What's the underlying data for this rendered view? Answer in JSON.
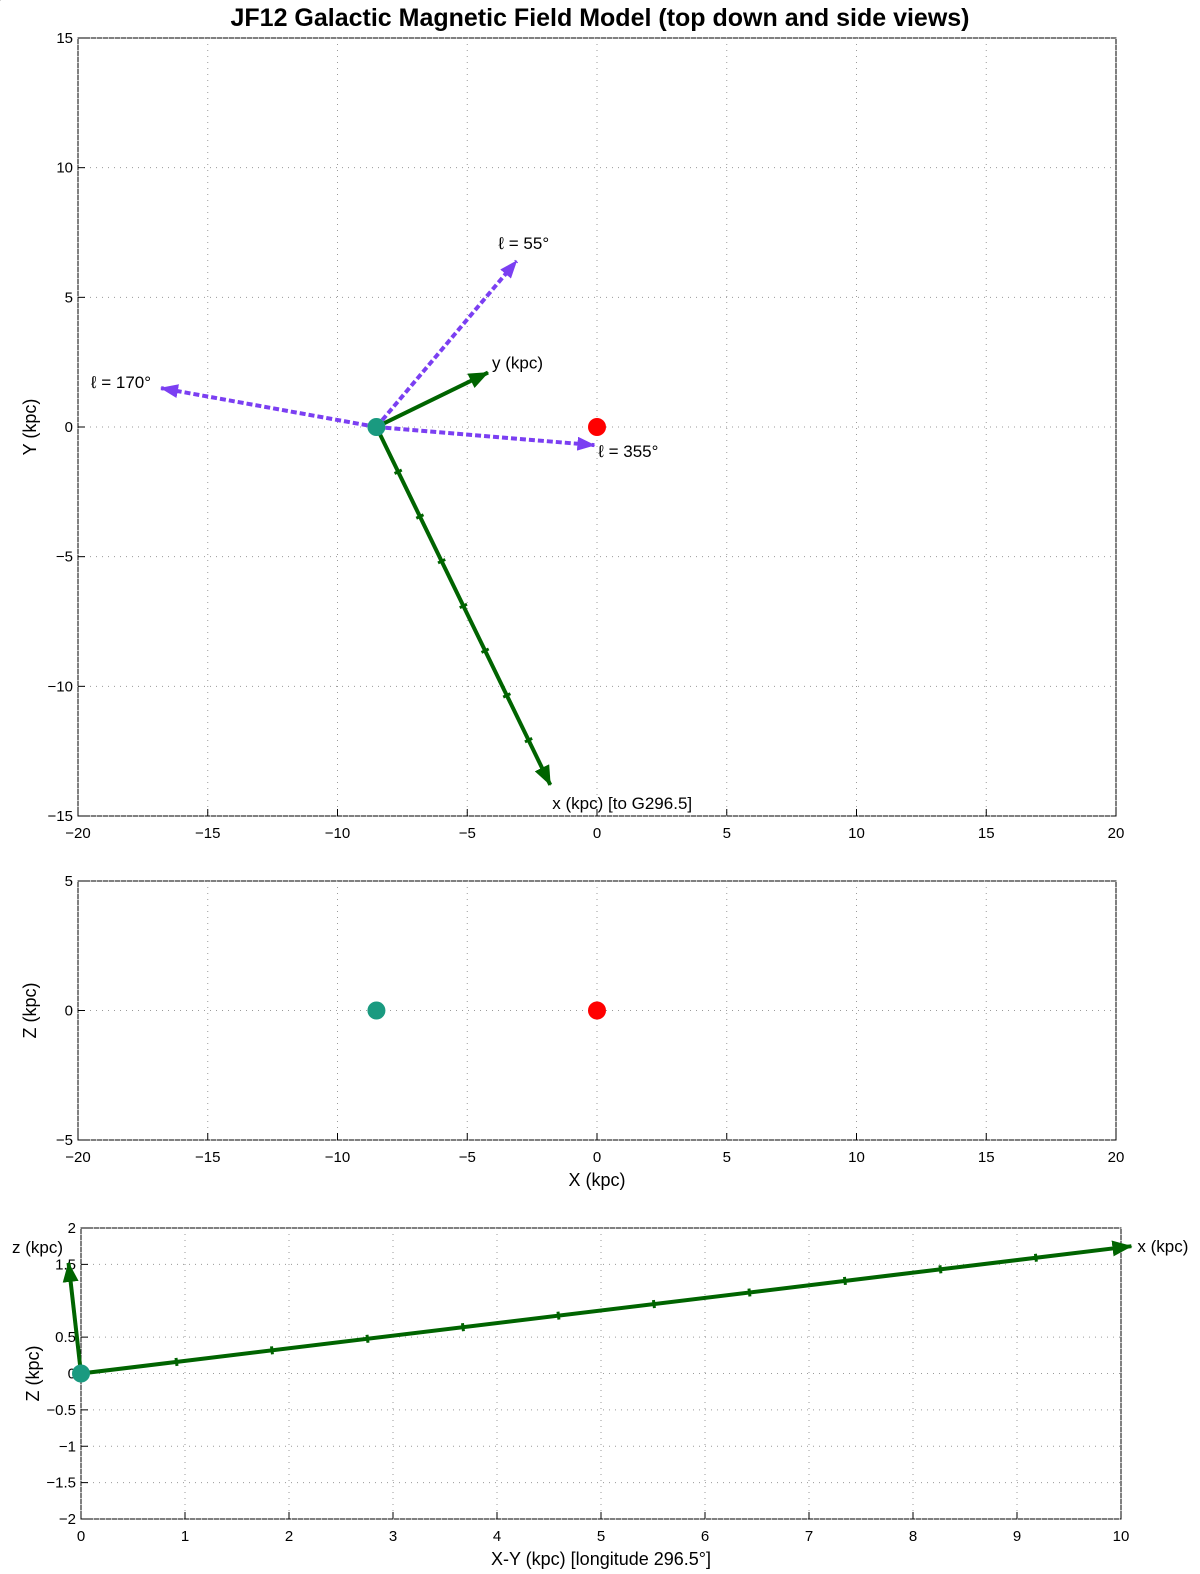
{
  "figure": {
    "title": "JF12 Galactic Magnetic Field Model (top down and side views)"
  },
  "colors": {
    "field_arrow": "#808080",
    "axis_arrow": "#006400",
    "longitude_arrow": "#7b3ff2",
    "sun": "#1a9a80",
    "galactic_center": "#ff0000",
    "grid": "#9a9a9a"
  },
  "chart_data": [
    {
      "type": "vector-field",
      "view": "top down",
      "xlabel": "",
      "ylabel": "Y (kpc)",
      "xlim": [
        -20,
        20
      ],
      "ylim": [
        -15,
        15
      ],
      "xticks": [
        -20,
        -15,
        -10,
        -5,
        0,
        5,
        10,
        15,
        20
      ],
      "yticks": [
        15,
        10,
        5,
        0,
        -5,
        -10,
        -15
      ],
      "xtick_labels": [
        "−20",
        "−15",
        "−10",
        "−5",
        "0",
        "5",
        "10",
        "15",
        "20"
      ],
      "ytick_labels": [
        "15",
        "10",
        "5",
        "0",
        "−5",
        "−10",
        "−15"
      ],
      "grid": "dotted",
      "points": [
        {
          "name": "sun",
          "x": -8.5,
          "y": 0
        },
        {
          "name": "galactic-center",
          "x": 0,
          "y": 0
        }
      ],
      "axis_arrows": [
        {
          "label": "y (kpc)",
          "from": [
            -8.5,
            0
          ],
          "to": [
            -4.2,
            2.1
          ]
        },
        {
          "label": "x (kpc) [to G296.5]",
          "from": [
            -8.5,
            0
          ],
          "to": [
            -1.8,
            -13.8
          ],
          "tick_count": 7
        }
      ],
      "longitude_arrows": [
        {
          "label": "ℓ = 55°",
          "from": [
            -8.5,
            0
          ],
          "to": [
            -3.1,
            6.4
          ]
        },
        {
          "label": "ℓ = 170°",
          "from": [
            -8.5,
            0
          ],
          "to": [
            -16.8,
            1.5
          ]
        },
        {
          "label": "ℓ = 355°",
          "from": [
            -8.5,
            0
          ],
          "to": [
            -0.1,
            -0.7
          ]
        }
      ]
    },
    {
      "type": "vector-field",
      "view": "side",
      "xlabel": "X (kpc)",
      "ylabel": "Z (kpc)",
      "xlim": [
        -20,
        20
      ],
      "ylim": [
        -5,
        5
      ],
      "xticks": [
        -20,
        -15,
        -10,
        -5,
        0,
        5,
        10,
        15,
        20
      ],
      "yticks": [
        5,
        0,
        -5
      ],
      "xtick_labels": [
        "−20",
        "−15",
        "−10",
        "−5",
        "0",
        "5",
        "10",
        "15",
        "20"
      ],
      "ytick_labels": [
        "5",
        "0",
        "−5"
      ],
      "grid": "dotted",
      "points": [
        {
          "name": "sun",
          "x": -8.5,
          "y": 0
        },
        {
          "name": "galactic-center",
          "x": 0,
          "y": 0
        }
      ]
    },
    {
      "type": "vector-field",
      "view": "line-of-sight cut",
      "xlabel": "X-Y (kpc) [longitude 296.5°]",
      "ylabel": "Z (kpc)",
      "xlim": [
        0,
        10
      ],
      "ylim": [
        -2,
        2
      ],
      "xticks": [
        0,
        1,
        2,
        3,
        4,
        5,
        6,
        7,
        8,
        9,
        10
      ],
      "yticks": [
        2,
        1.5,
        0.5,
        0,
        -0.5,
        -1,
        -1.5,
        -2
      ],
      "xtick_labels": [
        "0",
        "1",
        "2",
        "3",
        "4",
        "5",
        "6",
        "7",
        "8",
        "9",
        "10"
      ],
      "ytick_labels": [
        "2",
        "1.5",
        "0.5",
        "0",
        "−0.5",
        "−1",
        "−1.5",
        "−2"
      ],
      "grid": "dotted",
      "points": [
        {
          "name": "sun",
          "x": 0,
          "y": 0
        }
      ],
      "axis_arrows": [
        {
          "label": "x (kpc)",
          "from": [
            0,
            0
          ],
          "to": [
            10.1,
            1.75
          ],
          "tick_count": 10
        },
        {
          "label": "z (kpc)",
          "from": [
            0,
            0
          ],
          "to": [
            -0.12,
            1.52
          ]
        }
      ]
    }
  ]
}
